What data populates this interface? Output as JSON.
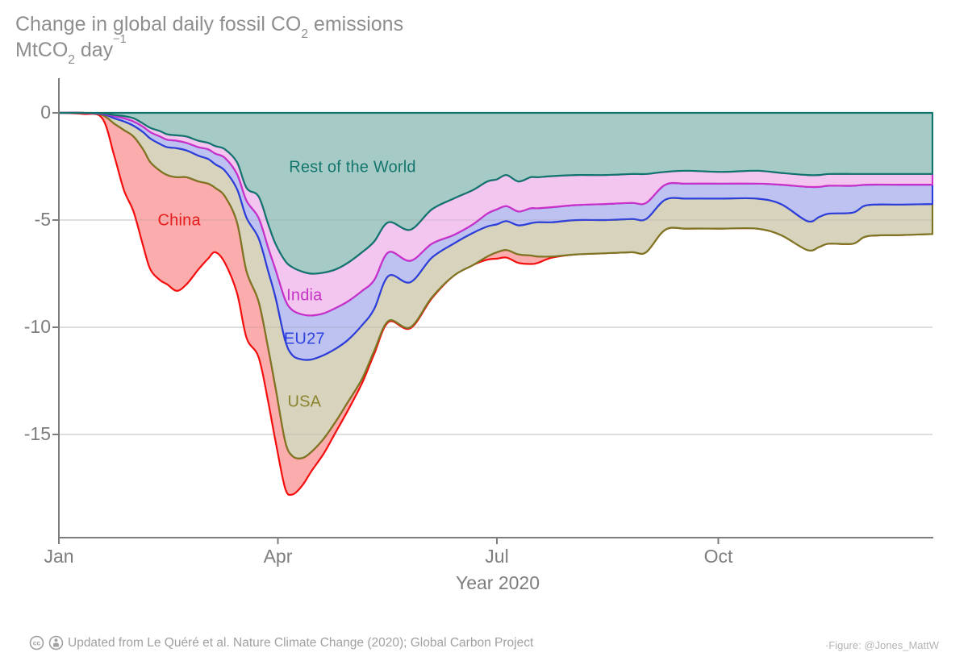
{
  "title": {
    "prefix": "Change in global daily fossil CO",
    "sub": "2",
    "suffix": " emissions"
  },
  "subtitle": {
    "prefix": "MtCO",
    "sub": "2",
    "mid": " day",
    "sup": "−1"
  },
  "x_axis": {
    "label": "Year 2020",
    "ticks": [
      "Jan",
      "Apr",
      "Jul",
      "Oct"
    ],
    "tick_days": [
      0,
      91,
      182,
      274
    ]
  },
  "y_axis": {
    "ticks": [
      "0",
      "-5",
      "-10",
      "-15"
    ],
    "tick_values": [
      0,
      -5,
      -10,
      -15
    ]
  },
  "footer": {
    "cc_icon": "cc-icon",
    "by_icon": "attribution-person-icon",
    "text": "Updated from Le Quéré et al. Nature Climate Change (2020); Global Carbon Project"
  },
  "credit": {
    "text": "·Figure: @Jones_MattW"
  },
  "colors": {
    "axis": "#7d7d7d",
    "gridline": "#e4e4e4",
    "title_gray": "#8e8e8e",
    "footer_gray": "#a0a0a0"
  },
  "chart_data": {
    "type": "area",
    "stacked": true,
    "title": "Change in global daily fossil CO2 emissions",
    "ylabel": "MtCO2 day-1",
    "xlabel": "Year 2020",
    "x_unit": "day_of_year_2020",
    "xlim": [
      0,
      363
    ],
    "ylim": [
      -19.8,
      1.6
    ],
    "gridlines": [
      0,
      -5,
      -10,
      -15
    ],
    "legend_position": "labels-in-plot",
    "x": [
      0,
      10,
      18,
      23,
      27,
      31,
      35,
      38,
      42,
      45,
      49,
      53,
      58,
      62,
      65,
      69,
      74,
      78,
      83,
      87,
      90,
      94,
      97,
      101,
      105,
      110,
      115,
      120,
      126,
      131,
      137,
      146,
      155,
      164,
      172,
      178,
      182,
      186,
      191,
      196,
      199,
      205,
      215,
      227,
      238,
      244,
      252,
      261,
      275,
      290,
      300,
      311,
      316,
      320,
      330,
      336,
      350,
      363
    ],
    "series": [
      {
        "name": "Rest of the World",
        "line": "#10756c",
        "fill": "#a6cbc7",
        "label_color": "#14756d",
        "values": [
          0,
          0,
          -0.02,
          -0.1,
          -0.15,
          -0.25,
          -0.5,
          -0.7,
          -0.85,
          -1.0,
          -1.05,
          -1.1,
          -1.3,
          -1.4,
          -1.55,
          -1.7,
          -2.3,
          -3.5,
          -3.9,
          -5.2,
          -6.1,
          -6.9,
          -7.2,
          -7.4,
          -7.5,
          -7.45,
          -7.3,
          -7.0,
          -6.5,
          -6.0,
          -5.1,
          -5.45,
          -4.5,
          -4.0,
          -3.6,
          -3.2,
          -3.1,
          -2.9,
          -3.2,
          -3.0,
          -3.0,
          -2.95,
          -2.9,
          -2.9,
          -2.85,
          -2.85,
          -2.75,
          -2.7,
          -2.75,
          -2.7,
          -2.8,
          -2.9,
          -2.9,
          -2.85,
          -2.85,
          -2.85,
          -2.85,
          -2.85
        ]
      },
      {
        "name": "India",
        "line": "#c92fc9",
        "fill": "#f2c6ee",
        "label_color": "#c535c5",
        "values": [
          0,
          0,
          -0.02,
          -0.05,
          -0.1,
          -0.15,
          -0.15,
          -0.2,
          -0.25,
          -0.25,
          -0.25,
          -0.3,
          -0.3,
          -0.3,
          -0.35,
          -0.4,
          -0.55,
          -0.6,
          -1.0,
          -1.1,
          -1.2,
          -1.8,
          -2.0,
          -2.0,
          -1.95,
          -1.9,
          -1.8,
          -1.8,
          -1.8,
          -1.8,
          -1.4,
          -1.45,
          -1.6,
          -1.7,
          -1.6,
          -1.5,
          -1.4,
          -1.45,
          -1.4,
          -1.45,
          -1.45,
          -1.45,
          -1.4,
          -1.35,
          -1.35,
          -1.35,
          -0.6,
          -0.6,
          -0.55,
          -0.6,
          -0.55,
          -0.55,
          -0.55,
          -0.55,
          -0.55,
          -0.5,
          -0.5,
          -0.5
        ]
      },
      {
        "name": "EU27",
        "line": "#2c3ddd",
        "fill": "#bdc2f0",
        "label_color": "#2f42dd",
        "values": [
          0,
          0,
          -0.02,
          -0.1,
          -0.15,
          -0.2,
          -0.25,
          -0.3,
          -0.35,
          -0.35,
          -0.35,
          -0.35,
          -0.4,
          -0.45,
          -0.5,
          -0.6,
          -0.7,
          -0.8,
          -0.95,
          -1.1,
          -1.3,
          -1.9,
          -2.1,
          -2.1,
          -2.05,
          -1.95,
          -1.9,
          -1.8,
          -1.6,
          -1.35,
          -1.1,
          -1.0,
          -0.65,
          -0.4,
          -0.4,
          -0.6,
          -0.7,
          -0.7,
          -0.65,
          -0.7,
          -0.65,
          -0.7,
          -0.7,
          -0.75,
          -0.75,
          -0.75,
          -0.7,
          -0.7,
          -0.7,
          -0.7,
          -0.9,
          -1.6,
          -1.4,
          -1.3,
          -1.25,
          -0.95,
          -0.93,
          -0.9
        ]
      },
      {
        "name": "USA",
        "line": "#7c7522",
        "fill": "#d7d3bd",
        "label_color": "#8a8430",
        "values": [
          0,
          0,
          -0.04,
          -0.25,
          -0.4,
          -0.5,
          -0.8,
          -1.1,
          -1.25,
          -1.3,
          -1.35,
          -1.25,
          -1.2,
          -1.15,
          -1.1,
          -1.2,
          -1.55,
          -2.5,
          -2.95,
          -3.6,
          -4.2,
          -4.7,
          -4.7,
          -4.6,
          -4.3,
          -3.9,
          -3.4,
          -2.9,
          -2.5,
          -1.95,
          -2.1,
          -2.1,
          -1.85,
          -1.5,
          -1.5,
          -1.4,
          -1.3,
          -1.35,
          -1.35,
          -1.5,
          -1.6,
          -1.6,
          -1.6,
          -1.55,
          -1.55,
          -1.55,
          -1.4,
          -1.4,
          -1.4,
          -1.4,
          -1.45,
          -1.35,
          -1.4,
          -1.4,
          -1.45,
          -1.45,
          -1.42,
          -1.4
        ]
      },
      {
        "name": "China",
        "line": "#f30d0d",
        "fill": "#fbacac",
        "label_color": "#e81b1b",
        "values": [
          0,
          -0.05,
          -0.15,
          -1.5,
          -2.8,
          -3.5,
          -4.5,
          -5.0,
          -5.1,
          -5.1,
          -5.3,
          -5.0,
          -4.1,
          -3.5,
          -3.0,
          -3.1,
          -3.3,
          -3.1,
          -2.6,
          -2.5,
          -2.5,
          -2.2,
          -1.8,
          -1.3,
          -0.9,
          -0.7,
          -0.5,
          -0.4,
          -0.2,
          -0.15,
          -0.05,
          -0.05,
          -0.05,
          0,
          0,
          -0.15,
          -0.3,
          -0.35,
          -0.4,
          -0.4,
          -0.3,
          -0.05,
          0,
          0,
          0,
          0,
          0,
          0,
          0,
          0,
          0,
          0,
          0,
          0,
          0,
          0,
          0,
          0
        ]
      }
    ],
    "labels": [
      {
        "series": 0,
        "day": 122,
        "value": -2.55
      },
      {
        "series": 1,
        "day": 102,
        "value": -8.55
      },
      {
        "series": 2,
        "day": 102,
        "value": -10.55
      },
      {
        "series": 3,
        "day": 102,
        "value": -13.5
      },
      {
        "series": 4,
        "day": 50,
        "value": -5.05
      }
    ]
  }
}
